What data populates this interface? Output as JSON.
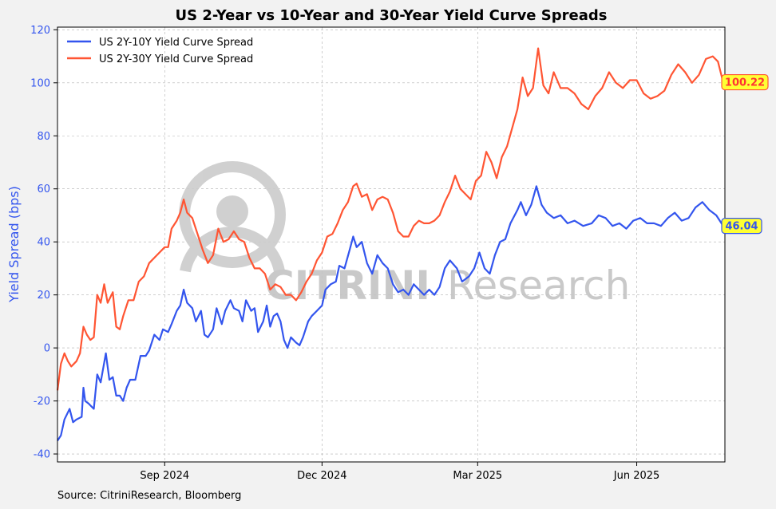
{
  "chart_data": {
    "type": "line",
    "title": "US 2-Year vs 10-Year and 30-Year Yield Curve Spreads",
    "ylabel": "Yield Spread (bps)",
    "xlabel": "",
    "ylim": [
      -43,
      121
    ],
    "xlim": [
      "2024-07-01",
      "2025-07-22"
    ],
    "grid": true,
    "legend_position": "top-left",
    "yticks": [
      -40,
      -20,
      0,
      20,
      40,
      60,
      80,
      100,
      120
    ],
    "xticks": [
      {
        "date": "2024-09-01",
        "label": "Sep 2024"
      },
      {
        "date": "2024-12-01",
        "label": "Dec 2024"
      },
      {
        "date": "2025-03-01",
        "label": "Mar 2025"
      },
      {
        "date": "2025-06-01",
        "label": "Jun 2025"
      }
    ],
    "source": "Source: CitriniResearch, Bloomberg",
    "watermark": {
      "bold": "CITRINI",
      "light": "Research"
    },
    "series": [
      {
        "name": "US 2Y-10Y Yield Curve Spread",
        "color": "#3355ee",
        "end_label": "46.04",
        "end_label_bg": "#ffff33",
        "end_label_text_color": "#3355ee",
        "points": [
          [
            "2024-07-01",
            -35
          ],
          [
            "2024-07-03",
            -33
          ],
          [
            "2024-07-05",
            -27
          ],
          [
            "2024-07-08",
            -23
          ],
          [
            "2024-07-10",
            -28
          ],
          [
            "2024-07-12",
            -27
          ],
          [
            "2024-07-15",
            -26
          ],
          [
            "2024-07-16",
            -15
          ],
          [
            "2024-07-17",
            -20
          ],
          [
            "2024-07-19",
            -21
          ],
          [
            "2024-07-22",
            -23
          ],
          [
            "2024-07-24",
            -10
          ],
          [
            "2024-07-26",
            -13
          ],
          [
            "2024-07-29",
            -2
          ],
          [
            "2024-07-31",
            -12
          ],
          [
            "2024-08-02",
            -11
          ],
          [
            "2024-08-04",
            -18
          ],
          [
            "2024-08-06",
            -18
          ],
          [
            "2024-08-08",
            -20
          ],
          [
            "2024-08-10",
            -15
          ],
          [
            "2024-08-12",
            -12
          ],
          [
            "2024-08-15",
            -12
          ],
          [
            "2024-08-18",
            -3
          ],
          [
            "2024-08-21",
            -3
          ],
          [
            "2024-08-23",
            -1
          ],
          [
            "2024-08-26",
            5
          ],
          [
            "2024-08-29",
            3
          ],
          [
            "2024-08-31",
            7
          ],
          [
            "2024-09-03",
            6
          ],
          [
            "2024-09-05",
            9
          ],
          [
            "2024-09-08",
            14
          ],
          [
            "2024-09-10",
            16
          ],
          [
            "2024-09-12",
            22
          ],
          [
            "2024-09-14",
            17
          ],
          [
            "2024-09-17",
            15
          ],
          [
            "2024-09-19",
            10
          ],
          [
            "2024-09-22",
            14
          ],
          [
            "2024-09-24",
            5
          ],
          [
            "2024-09-26",
            4
          ],
          [
            "2024-09-29",
            7
          ],
          [
            "2024-10-01",
            15
          ],
          [
            "2024-10-04",
            9
          ],
          [
            "2024-10-06",
            14
          ],
          [
            "2024-10-09",
            18
          ],
          [
            "2024-10-11",
            15
          ],
          [
            "2024-10-14",
            14
          ],
          [
            "2024-10-16",
            10
          ],
          [
            "2024-10-18",
            18
          ],
          [
            "2024-10-21",
            14
          ],
          [
            "2024-10-23",
            15
          ],
          [
            "2024-10-25",
            6
          ],
          [
            "2024-10-28",
            10
          ],
          [
            "2024-10-30",
            16
          ],
          [
            "2024-11-01",
            8
          ],
          [
            "2024-11-03",
            12
          ],
          [
            "2024-11-05",
            13
          ],
          [
            "2024-11-07",
            10
          ],
          [
            "2024-11-09",
            3
          ],
          [
            "2024-11-11",
            0
          ],
          [
            "2024-11-13",
            4
          ],
          [
            "2024-11-16",
            2
          ],
          [
            "2024-11-18",
            1
          ],
          [
            "2024-11-20",
            4
          ],
          [
            "2024-11-23",
            10
          ],
          [
            "2024-11-25",
            12
          ],
          [
            "2024-11-28",
            14
          ],
          [
            "2024-12-01",
            16
          ],
          [
            "2024-12-03",
            22
          ],
          [
            "2024-12-06",
            24
          ],
          [
            "2024-12-09",
            25
          ],
          [
            "2024-12-11",
            31
          ],
          [
            "2024-12-14",
            30
          ],
          [
            "2024-12-17",
            37
          ],
          [
            "2024-12-19",
            42
          ],
          [
            "2024-12-21",
            38
          ],
          [
            "2024-12-24",
            40
          ],
          [
            "2024-12-27",
            32
          ],
          [
            "2024-12-30",
            28
          ],
          [
            "2025-01-02",
            35
          ],
          [
            "2025-01-05",
            32
          ],
          [
            "2025-01-08",
            30
          ],
          [
            "2025-01-11",
            24
          ],
          [
            "2025-01-14",
            21
          ],
          [
            "2025-01-17",
            22
          ],
          [
            "2025-01-20",
            20
          ],
          [
            "2025-01-23",
            24
          ],
          [
            "2025-01-26",
            22
          ],
          [
            "2025-01-29",
            20
          ],
          [
            "2025-02-01",
            22
          ],
          [
            "2025-02-04",
            20
          ],
          [
            "2025-02-07",
            23
          ],
          [
            "2025-02-10",
            30
          ],
          [
            "2025-02-13",
            33
          ],
          [
            "2025-02-17",
            30
          ],
          [
            "2025-02-20",
            25
          ],
          [
            "2025-02-24",
            27
          ],
          [
            "2025-02-27",
            30
          ],
          [
            "2025-03-02",
            36
          ],
          [
            "2025-03-05",
            30
          ],
          [
            "2025-03-08",
            28
          ],
          [
            "2025-03-11",
            35
          ],
          [
            "2025-03-14",
            40
          ],
          [
            "2025-03-17",
            41
          ],
          [
            "2025-03-20",
            47
          ],
          [
            "2025-03-24",
            52
          ],
          [
            "2025-03-26",
            55
          ],
          [
            "2025-03-29",
            50
          ],
          [
            "2025-04-01",
            54
          ],
          [
            "2025-04-04",
            61
          ],
          [
            "2025-04-07",
            54
          ],
          [
            "2025-04-10",
            51
          ],
          [
            "2025-04-14",
            49
          ],
          [
            "2025-04-18",
            50
          ],
          [
            "2025-04-22",
            47
          ],
          [
            "2025-04-26",
            48
          ],
          [
            "2025-05-01",
            46
          ],
          [
            "2025-05-06",
            47
          ],
          [
            "2025-05-10",
            50
          ],
          [
            "2025-05-14",
            49
          ],
          [
            "2025-05-18",
            46
          ],
          [
            "2025-05-22",
            47
          ],
          [
            "2025-05-26",
            45
          ],
          [
            "2025-05-30",
            48
          ],
          [
            "2025-06-03",
            49
          ],
          [
            "2025-06-07",
            47
          ],
          [
            "2025-06-11",
            47
          ],
          [
            "2025-06-15",
            46
          ],
          [
            "2025-06-19",
            49
          ],
          [
            "2025-06-23",
            51
          ],
          [
            "2025-06-27",
            48
          ],
          [
            "2025-07-01",
            49
          ],
          [
            "2025-07-05",
            53
          ],
          [
            "2025-07-09",
            55
          ],
          [
            "2025-07-13",
            52
          ],
          [
            "2025-07-17",
            50
          ],
          [
            "2025-07-21",
            46.04
          ]
        ]
      },
      {
        "name": "US 2Y-30Y Yield Curve Spread",
        "color": "#ff5533",
        "end_label": "100.22",
        "end_label_bg": "#ffff33",
        "end_label_text_color": "#ff3333",
        "points": [
          [
            "2024-07-01",
            -16
          ],
          [
            "2024-07-03",
            -6
          ],
          [
            "2024-07-05",
            -2
          ],
          [
            "2024-07-07",
            -5
          ],
          [
            "2024-07-09",
            -7
          ],
          [
            "2024-07-12",
            -5
          ],
          [
            "2024-07-14",
            -2
          ],
          [
            "2024-07-16",
            8
          ],
          [
            "2024-07-18",
            5
          ],
          [
            "2024-07-20",
            3
          ],
          [
            "2024-07-22",
            4
          ],
          [
            "2024-07-24",
            20
          ],
          [
            "2024-07-26",
            17
          ],
          [
            "2024-07-28",
            24
          ],
          [
            "2024-07-30",
            17
          ],
          [
            "2024-08-02",
            21
          ],
          [
            "2024-08-04",
            8
          ],
          [
            "2024-08-06",
            7
          ],
          [
            "2024-08-08",
            12
          ],
          [
            "2024-08-11",
            18
          ],
          [
            "2024-08-14",
            18
          ],
          [
            "2024-08-17",
            25
          ],
          [
            "2024-08-20",
            27
          ],
          [
            "2024-08-23",
            32
          ],
          [
            "2024-08-26",
            34
          ],
          [
            "2024-08-29",
            36
          ],
          [
            "2024-09-01",
            38
          ],
          [
            "2024-09-03",
            38
          ],
          [
            "2024-09-05",
            45
          ],
          [
            "2024-09-08",
            48
          ],
          [
            "2024-09-10",
            51
          ],
          [
            "2024-09-12",
            56
          ],
          [
            "2024-09-14",
            51
          ],
          [
            "2024-09-17",
            49
          ],
          [
            "2024-09-20",
            43
          ],
          [
            "2024-09-23",
            37
          ],
          [
            "2024-09-26",
            32
          ],
          [
            "2024-09-29",
            35
          ],
          [
            "2024-10-02",
            45
          ],
          [
            "2024-10-05",
            40
          ],
          [
            "2024-10-08",
            41
          ],
          [
            "2024-10-11",
            44
          ],
          [
            "2024-10-14",
            41
          ],
          [
            "2024-10-17",
            40
          ],
          [
            "2024-10-20",
            34
          ],
          [
            "2024-10-23",
            30
          ],
          [
            "2024-10-26",
            30
          ],
          [
            "2024-10-29",
            28
          ],
          [
            "2024-11-01",
            22
          ],
          [
            "2024-11-04",
            24
          ],
          [
            "2024-11-07",
            23
          ],
          [
            "2024-11-10",
            20
          ],
          [
            "2024-11-13",
            20
          ],
          [
            "2024-11-16",
            18
          ],
          [
            "2024-11-19",
            21
          ],
          [
            "2024-11-22",
            25
          ],
          [
            "2024-11-25",
            28
          ],
          [
            "2024-11-28",
            33
          ],
          [
            "2024-12-01",
            36
          ],
          [
            "2024-12-04",
            42
          ],
          [
            "2024-12-07",
            43
          ],
          [
            "2024-12-10",
            47
          ],
          [
            "2024-12-13",
            52
          ],
          [
            "2024-12-16",
            55
          ],
          [
            "2024-12-19",
            61
          ],
          [
            "2024-12-21",
            62
          ],
          [
            "2024-12-24",
            57
          ],
          [
            "2024-12-27",
            58
          ],
          [
            "2024-12-30",
            52
          ],
          [
            "2025-01-02",
            56
          ],
          [
            "2025-01-05",
            57
          ],
          [
            "2025-01-08",
            56
          ],
          [
            "2025-01-11",
            51
          ],
          [
            "2025-01-14",
            44
          ],
          [
            "2025-01-17",
            42
          ],
          [
            "2025-01-20",
            42
          ],
          [
            "2025-01-23",
            46
          ],
          [
            "2025-01-26",
            48
          ],
          [
            "2025-01-29",
            47
          ],
          [
            "2025-02-01",
            47
          ],
          [
            "2025-02-04",
            48
          ],
          [
            "2025-02-07",
            50
          ],
          [
            "2025-02-10",
            55
          ],
          [
            "2025-02-13",
            59
          ],
          [
            "2025-02-16",
            65
          ],
          [
            "2025-02-19",
            60
          ],
          [
            "2025-02-22",
            58
          ],
          [
            "2025-02-25",
            56
          ],
          [
            "2025-02-28",
            63
          ],
          [
            "2025-03-03",
            65
          ],
          [
            "2025-03-06",
            74
          ],
          [
            "2025-03-09",
            70
          ],
          [
            "2025-03-12",
            64
          ],
          [
            "2025-03-15",
            72
          ],
          [
            "2025-03-18",
            76
          ],
          [
            "2025-03-21",
            83
          ],
          [
            "2025-03-24",
            90
          ],
          [
            "2025-03-27",
            102
          ],
          [
            "2025-03-30",
            95
          ],
          [
            "2025-04-02",
            98
          ],
          [
            "2025-04-05",
            113
          ],
          [
            "2025-04-08",
            99
          ],
          [
            "2025-04-11",
            96
          ],
          [
            "2025-04-14",
            104
          ],
          [
            "2025-04-18",
            98
          ],
          [
            "2025-04-22",
            98
          ],
          [
            "2025-04-26",
            96
          ],
          [
            "2025-04-30",
            92
          ],
          [
            "2025-05-04",
            90
          ],
          [
            "2025-05-08",
            95
          ],
          [
            "2025-05-12",
            98
          ],
          [
            "2025-05-16",
            104
          ],
          [
            "2025-05-20",
            100
          ],
          [
            "2025-05-24",
            98
          ],
          [
            "2025-05-28",
            101
          ],
          [
            "2025-06-01",
            101
          ],
          [
            "2025-06-05",
            96
          ],
          [
            "2025-06-09",
            94
          ],
          [
            "2025-06-13",
            95
          ],
          [
            "2025-06-17",
            97
          ],
          [
            "2025-06-21",
            103
          ],
          [
            "2025-06-25",
            107
          ],
          [
            "2025-06-29",
            104
          ],
          [
            "2025-07-03",
            100
          ],
          [
            "2025-07-07",
            103
          ],
          [
            "2025-07-11",
            109
          ],
          [
            "2025-07-15",
            110
          ],
          [
            "2025-07-18",
            108
          ],
          [
            "2025-07-21",
            100.22
          ]
        ]
      }
    ]
  }
}
